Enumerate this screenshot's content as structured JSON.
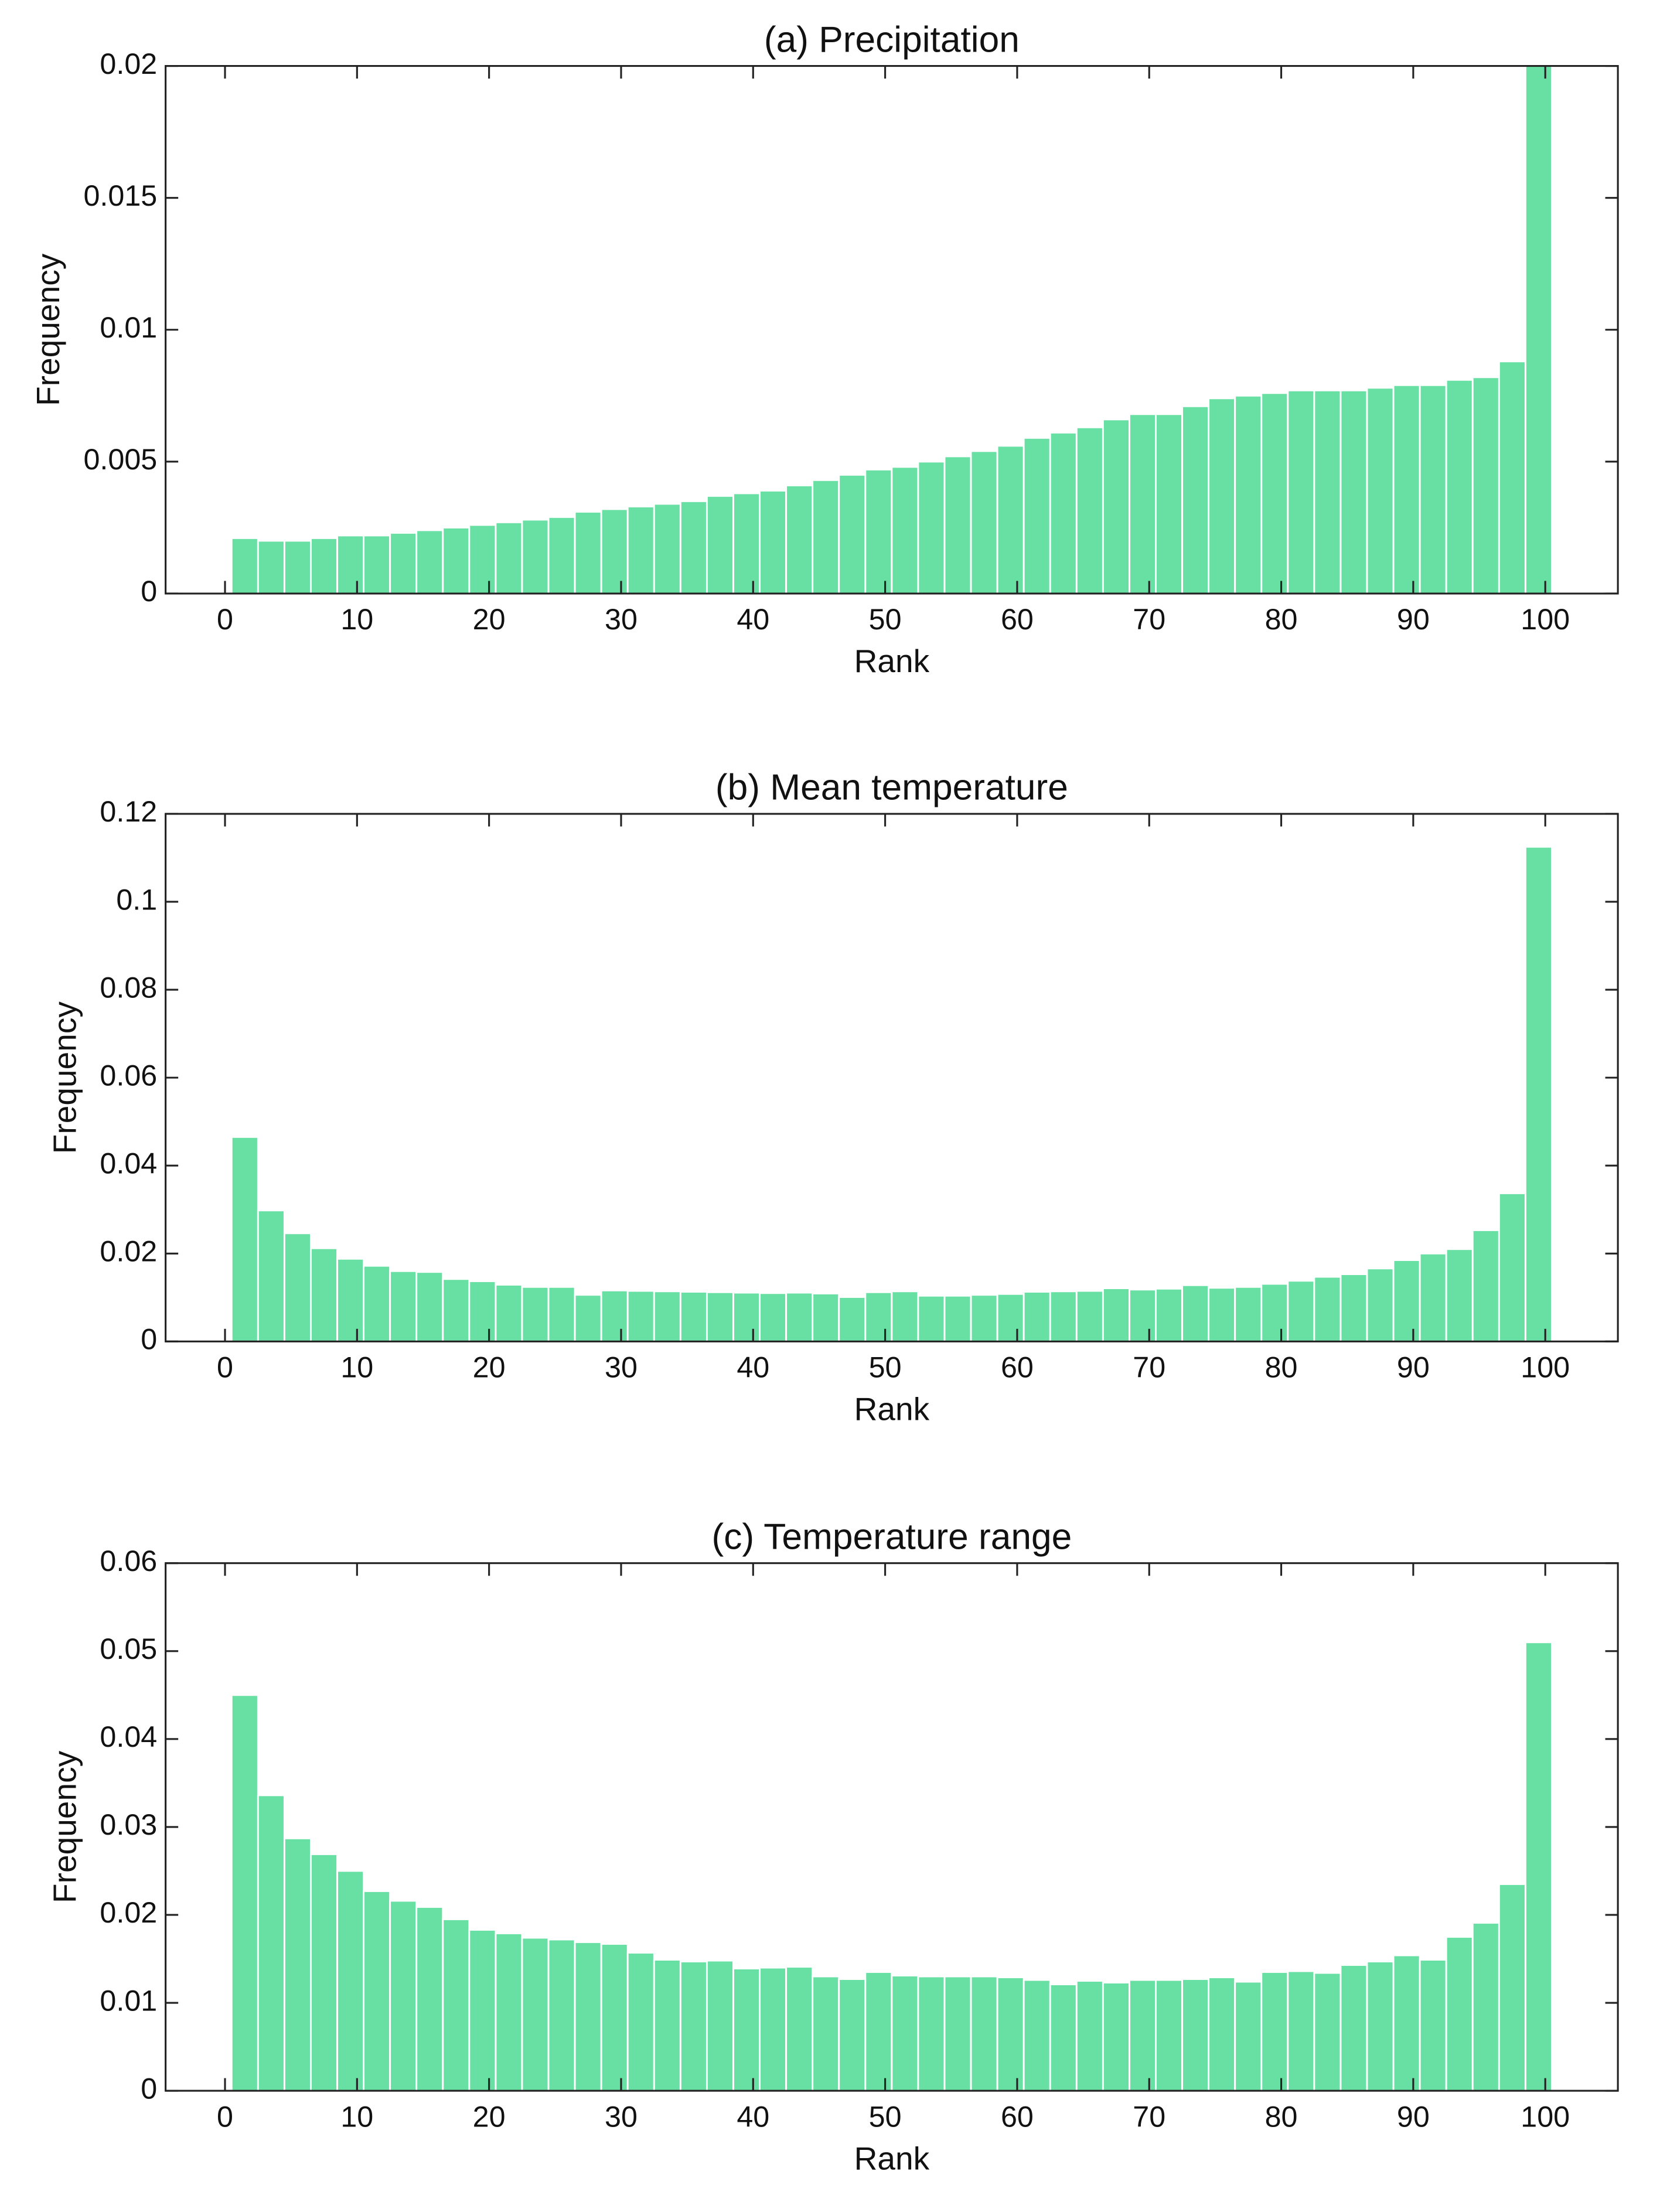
{
  "chart_data": [
    {
      "type": "histogram",
      "title": "(a) Precipitation",
      "xlabel": "Rank",
      "ylabel": "Frequency",
      "color": "#69e0a3",
      "bins": [
        0.5,
        2.5,
        4.5,
        6.5,
        8.5,
        10.5,
        12.5,
        14.5,
        16.5,
        18.5,
        20.5,
        22.5,
        24.5,
        26.5,
        28.5,
        30.5,
        32.5,
        34.5,
        36.5,
        38.5,
        40.5,
        42.5,
        44.5,
        46.5,
        48.5,
        50.5,
        52.5,
        54.5,
        56.5,
        58.5,
        60.5,
        62.5,
        64.5,
        66.5,
        68.5,
        70.5,
        72.5,
        74.5,
        76.5,
        78.5,
        80.5,
        82.5,
        84.5,
        86.5,
        88.5,
        90.5,
        92.5,
        94.5,
        96.5,
        98.5,
        100.5
      ],
      "values": [
        0.0021,
        0.002,
        0.002,
        0.0021,
        0.0022,
        0.0022,
        0.0023,
        0.0024,
        0.0025,
        0.0026,
        0.0027,
        0.0028,
        0.0029,
        0.0031,
        0.0032,
        0.0033,
        0.0034,
        0.0035,
        0.0037,
        0.0038,
        0.0039,
        0.0041,
        0.0043,
        0.0045,
        0.0047,
        0.0048,
        0.005,
        0.0052,
        0.0054,
        0.0056,
        0.0059,
        0.0061,
        0.0063,
        0.0066,
        0.0068,
        0.0068,
        0.0071,
        0.0074,
        0.0075,
        0.0076,
        0.0077,
        0.0077,
        0.0077,
        0.0078,
        0.0079,
        0.0079,
        0.0081,
        0.0082,
        0.0088,
        0.02
      ],
      "xlim": [
        -4.5,
        105.5
      ],
      "xticks": [
        0,
        10,
        20,
        30,
        40,
        50,
        60,
        70,
        80,
        90,
        100
      ],
      "ylim": [
        0,
        0.02
      ],
      "yticks": [
        0,
        0.005,
        0.01,
        0.015,
        0.02
      ]
    },
    {
      "type": "histogram",
      "title": "(b) Mean temperature",
      "xlabel": "Rank",
      "ylabel": "Frequency",
      "color": "#69e0a3",
      "bins": [
        0.5,
        2.5,
        4.5,
        6.5,
        8.5,
        10.5,
        12.5,
        14.5,
        16.5,
        18.5,
        20.5,
        22.5,
        24.5,
        26.5,
        28.5,
        30.5,
        32.5,
        34.5,
        36.5,
        38.5,
        40.5,
        42.5,
        44.5,
        46.5,
        48.5,
        50.5,
        52.5,
        54.5,
        56.5,
        58.5,
        60.5,
        62.5,
        64.5,
        66.5,
        68.5,
        70.5,
        72.5,
        74.5,
        76.5,
        78.5,
        80.5,
        82.5,
        84.5,
        86.5,
        88.5,
        90.5,
        92.5,
        94.5,
        96.5,
        98.5,
        100.5
      ],
      "values": [
        0.0465,
        0.0298,
        0.0246,
        0.0212,
        0.0188,
        0.0172,
        0.016,
        0.0158,
        0.0142,
        0.0137,
        0.0129,
        0.0124,
        0.0124,
        0.0106,
        0.0116,
        0.0115,
        0.0114,
        0.0113,
        0.0112,
        0.0111,
        0.011,
        0.0111,
        0.0109,
        0.0101,
        0.0112,
        0.0114,
        0.0104,
        0.0104,
        0.0106,
        0.0108,
        0.0113,
        0.0114,
        0.0115,
        0.0121,
        0.0118,
        0.012,
        0.0128,
        0.0122,
        0.0124,
        0.0131,
        0.0138,
        0.0147,
        0.0153,
        0.0166,
        0.0185,
        0.02,
        0.021,
        0.0253,
        0.0337,
        0.1125
      ],
      "xlim": [
        -4.5,
        105.5
      ],
      "xticks": [
        0,
        10,
        20,
        30,
        40,
        50,
        60,
        70,
        80,
        90,
        100
      ],
      "ylim": [
        0,
        0.12
      ],
      "yticks": [
        0,
        0.02,
        0.04,
        0.06,
        0.08,
        0.1,
        0.12
      ]
    },
    {
      "type": "histogram",
      "title": "(c) Temperature range",
      "xlabel": "Rank",
      "ylabel": "Frequency",
      "color": "#69e0a3",
      "bins": [
        0.5,
        2.5,
        4.5,
        6.5,
        8.5,
        10.5,
        12.5,
        14.5,
        16.5,
        18.5,
        20.5,
        22.5,
        24.5,
        26.5,
        28.5,
        30.5,
        32.5,
        34.5,
        36.5,
        38.5,
        40.5,
        42.5,
        44.5,
        46.5,
        48.5,
        50.5,
        52.5,
        54.5,
        56.5,
        58.5,
        60.5,
        62.5,
        64.5,
        66.5,
        68.5,
        70.5,
        72.5,
        74.5,
        76.5,
        78.5,
        80.5,
        82.5,
        84.5,
        86.5,
        88.5,
        90.5,
        92.5,
        94.5,
        96.5,
        98.5,
        100.5
      ],
      "values": [
        0.045,
        0.0336,
        0.0287,
        0.0269,
        0.025,
        0.0227,
        0.0216,
        0.0209,
        0.0195,
        0.0183,
        0.0179,
        0.0174,
        0.0172,
        0.0169,
        0.0167,
        0.0157,
        0.0149,
        0.0147,
        0.0148,
        0.0139,
        0.014,
        0.0141,
        0.013,
        0.0127,
        0.0135,
        0.0131,
        0.013,
        0.013,
        0.013,
        0.0129,
        0.0126,
        0.0121,
        0.0125,
        0.0123,
        0.0126,
        0.0126,
        0.0127,
        0.0129,
        0.0124,
        0.0135,
        0.0136,
        0.0134,
        0.0143,
        0.0147,
        0.0154,
        0.0149,
        0.0175,
        0.0191,
        0.0235,
        0.051
      ],
      "xlim": [
        -4.5,
        105.5
      ],
      "xticks": [
        0,
        10,
        20,
        30,
        40,
        50,
        60,
        70,
        80,
        90,
        100
      ],
      "ylim": [
        0,
        0.06
      ],
      "yticks": [
        0,
        0.01,
        0.02,
        0.03,
        0.04,
        0.05,
        0.06
      ]
    }
  ]
}
